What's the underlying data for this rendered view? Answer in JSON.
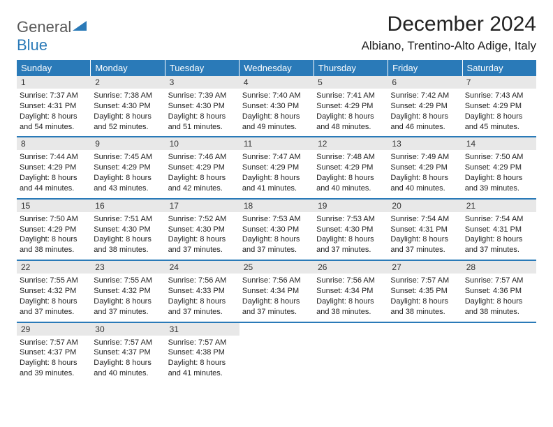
{
  "logo": {
    "text1": "General",
    "text2": "Blue"
  },
  "title": "December 2024",
  "location": "Albiano, Trentino-Alto Adige, Italy",
  "colors": {
    "header_bg": "#2a7ab8",
    "header_text": "#ffffff",
    "daynum_bg": "#e8e8e8",
    "border": "#2a7ab8",
    "logo_gray": "#5a5a5a",
    "logo_blue": "#2a7ab8"
  },
  "day_labels": [
    "Sunday",
    "Monday",
    "Tuesday",
    "Wednesday",
    "Thursday",
    "Friday",
    "Saturday"
  ],
  "weeks": [
    [
      {
        "n": "1",
        "sunrise": "7:37 AM",
        "sunset": "4:31 PM",
        "dl_h": "8",
        "dl_m": "54"
      },
      {
        "n": "2",
        "sunrise": "7:38 AM",
        "sunset": "4:30 PM",
        "dl_h": "8",
        "dl_m": "52"
      },
      {
        "n": "3",
        "sunrise": "7:39 AM",
        "sunset": "4:30 PM",
        "dl_h": "8",
        "dl_m": "51"
      },
      {
        "n": "4",
        "sunrise": "7:40 AM",
        "sunset": "4:30 PM",
        "dl_h": "8",
        "dl_m": "49"
      },
      {
        "n": "5",
        "sunrise": "7:41 AM",
        "sunset": "4:29 PM",
        "dl_h": "8",
        "dl_m": "48"
      },
      {
        "n": "6",
        "sunrise": "7:42 AM",
        "sunset": "4:29 PM",
        "dl_h": "8",
        "dl_m": "46"
      },
      {
        "n": "7",
        "sunrise": "7:43 AM",
        "sunset": "4:29 PM",
        "dl_h": "8",
        "dl_m": "45"
      }
    ],
    [
      {
        "n": "8",
        "sunrise": "7:44 AM",
        "sunset": "4:29 PM",
        "dl_h": "8",
        "dl_m": "44"
      },
      {
        "n": "9",
        "sunrise": "7:45 AM",
        "sunset": "4:29 PM",
        "dl_h": "8",
        "dl_m": "43"
      },
      {
        "n": "10",
        "sunrise": "7:46 AM",
        "sunset": "4:29 PM",
        "dl_h": "8",
        "dl_m": "42"
      },
      {
        "n": "11",
        "sunrise": "7:47 AM",
        "sunset": "4:29 PM",
        "dl_h": "8",
        "dl_m": "41"
      },
      {
        "n": "12",
        "sunrise": "7:48 AM",
        "sunset": "4:29 PM",
        "dl_h": "8",
        "dl_m": "40"
      },
      {
        "n": "13",
        "sunrise": "7:49 AM",
        "sunset": "4:29 PM",
        "dl_h": "8",
        "dl_m": "40"
      },
      {
        "n": "14",
        "sunrise": "7:50 AM",
        "sunset": "4:29 PM",
        "dl_h": "8",
        "dl_m": "39"
      }
    ],
    [
      {
        "n": "15",
        "sunrise": "7:50 AM",
        "sunset": "4:29 PM",
        "dl_h": "8",
        "dl_m": "38"
      },
      {
        "n": "16",
        "sunrise": "7:51 AM",
        "sunset": "4:30 PM",
        "dl_h": "8",
        "dl_m": "38"
      },
      {
        "n": "17",
        "sunrise": "7:52 AM",
        "sunset": "4:30 PM",
        "dl_h": "8",
        "dl_m": "37"
      },
      {
        "n": "18",
        "sunrise": "7:53 AM",
        "sunset": "4:30 PM",
        "dl_h": "8",
        "dl_m": "37"
      },
      {
        "n": "19",
        "sunrise": "7:53 AM",
        "sunset": "4:30 PM",
        "dl_h": "8",
        "dl_m": "37"
      },
      {
        "n": "20",
        "sunrise": "7:54 AM",
        "sunset": "4:31 PM",
        "dl_h": "8",
        "dl_m": "37"
      },
      {
        "n": "21",
        "sunrise": "7:54 AM",
        "sunset": "4:31 PM",
        "dl_h": "8",
        "dl_m": "37"
      }
    ],
    [
      {
        "n": "22",
        "sunrise": "7:55 AM",
        "sunset": "4:32 PM",
        "dl_h": "8",
        "dl_m": "37"
      },
      {
        "n": "23",
        "sunrise": "7:55 AM",
        "sunset": "4:32 PM",
        "dl_h": "8",
        "dl_m": "37"
      },
      {
        "n": "24",
        "sunrise": "7:56 AM",
        "sunset": "4:33 PM",
        "dl_h": "8",
        "dl_m": "37"
      },
      {
        "n": "25",
        "sunrise": "7:56 AM",
        "sunset": "4:34 PM",
        "dl_h": "8",
        "dl_m": "37"
      },
      {
        "n": "26",
        "sunrise": "7:56 AM",
        "sunset": "4:34 PM",
        "dl_h": "8",
        "dl_m": "38"
      },
      {
        "n": "27",
        "sunrise": "7:57 AM",
        "sunset": "4:35 PM",
        "dl_h": "8",
        "dl_m": "38"
      },
      {
        "n": "28",
        "sunrise": "7:57 AM",
        "sunset": "4:36 PM",
        "dl_h": "8",
        "dl_m": "38"
      }
    ],
    [
      {
        "n": "29",
        "sunrise": "7:57 AM",
        "sunset": "4:37 PM",
        "dl_h": "8",
        "dl_m": "39"
      },
      {
        "n": "30",
        "sunrise": "7:57 AM",
        "sunset": "4:37 PM",
        "dl_h": "8",
        "dl_m": "40"
      },
      {
        "n": "31",
        "sunrise": "7:57 AM",
        "sunset": "4:38 PM",
        "dl_h": "8",
        "dl_m": "41"
      },
      null,
      null,
      null,
      null
    ]
  ],
  "labels": {
    "sunrise": "Sunrise:",
    "sunset": "Sunset:",
    "daylight": "Daylight:",
    "hours": "hours",
    "and": "and",
    "minutes": "minutes."
  }
}
